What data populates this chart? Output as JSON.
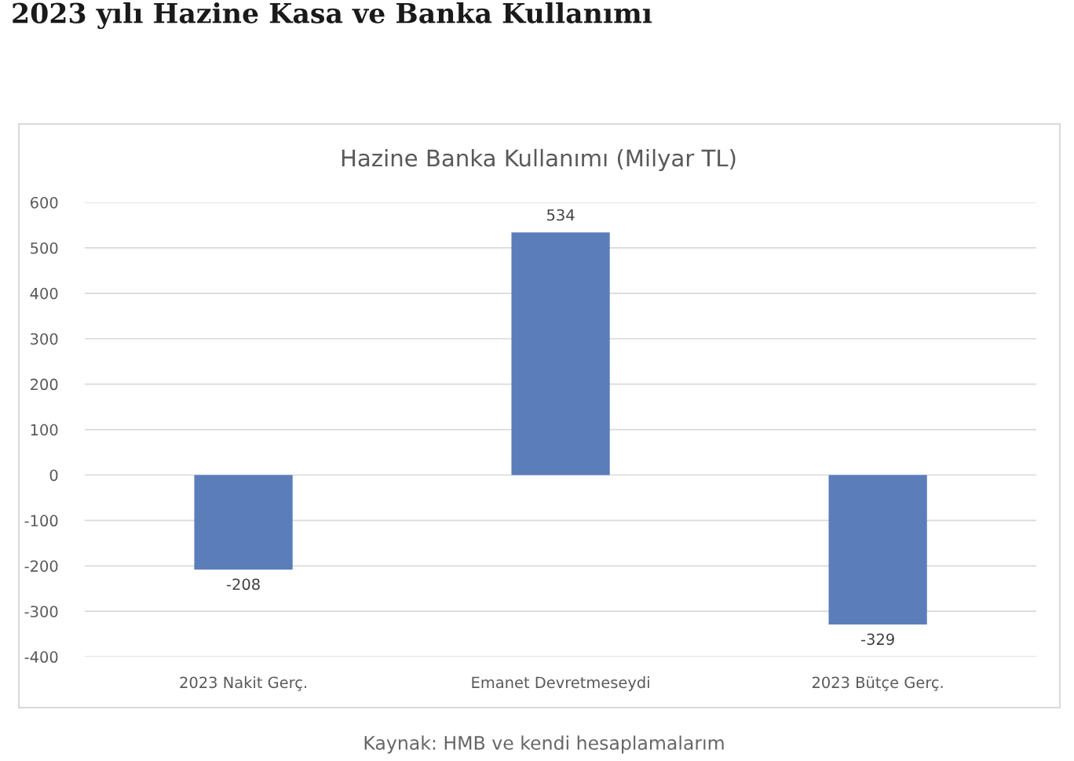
{
  "chart_data": {
    "type": "bar",
    "title": "2023 yılı Hazine Kasa ve Banka Kullanımı",
    "subtitle": "Hazine Banka Kullanımı (Milyar TL)",
    "categories": [
      "2023 Nakit Gerç.",
      "Emanet Devretmeseydi",
      "2023 Bütçe Gerç."
    ],
    "values": [
      -208,
      534,
      -329
    ],
    "color": "#5b7dba",
    "ylim": [
      -400,
      600
    ],
    "yticks": [
      -400,
      -300,
      -200,
      -100,
      0,
      100,
      200,
      300,
      400,
      500,
      600
    ],
    "grid": "y",
    "data_labels": true,
    "annotations": [
      "Kaynak: HMB ve kendi hesaplamalarım"
    ]
  }
}
